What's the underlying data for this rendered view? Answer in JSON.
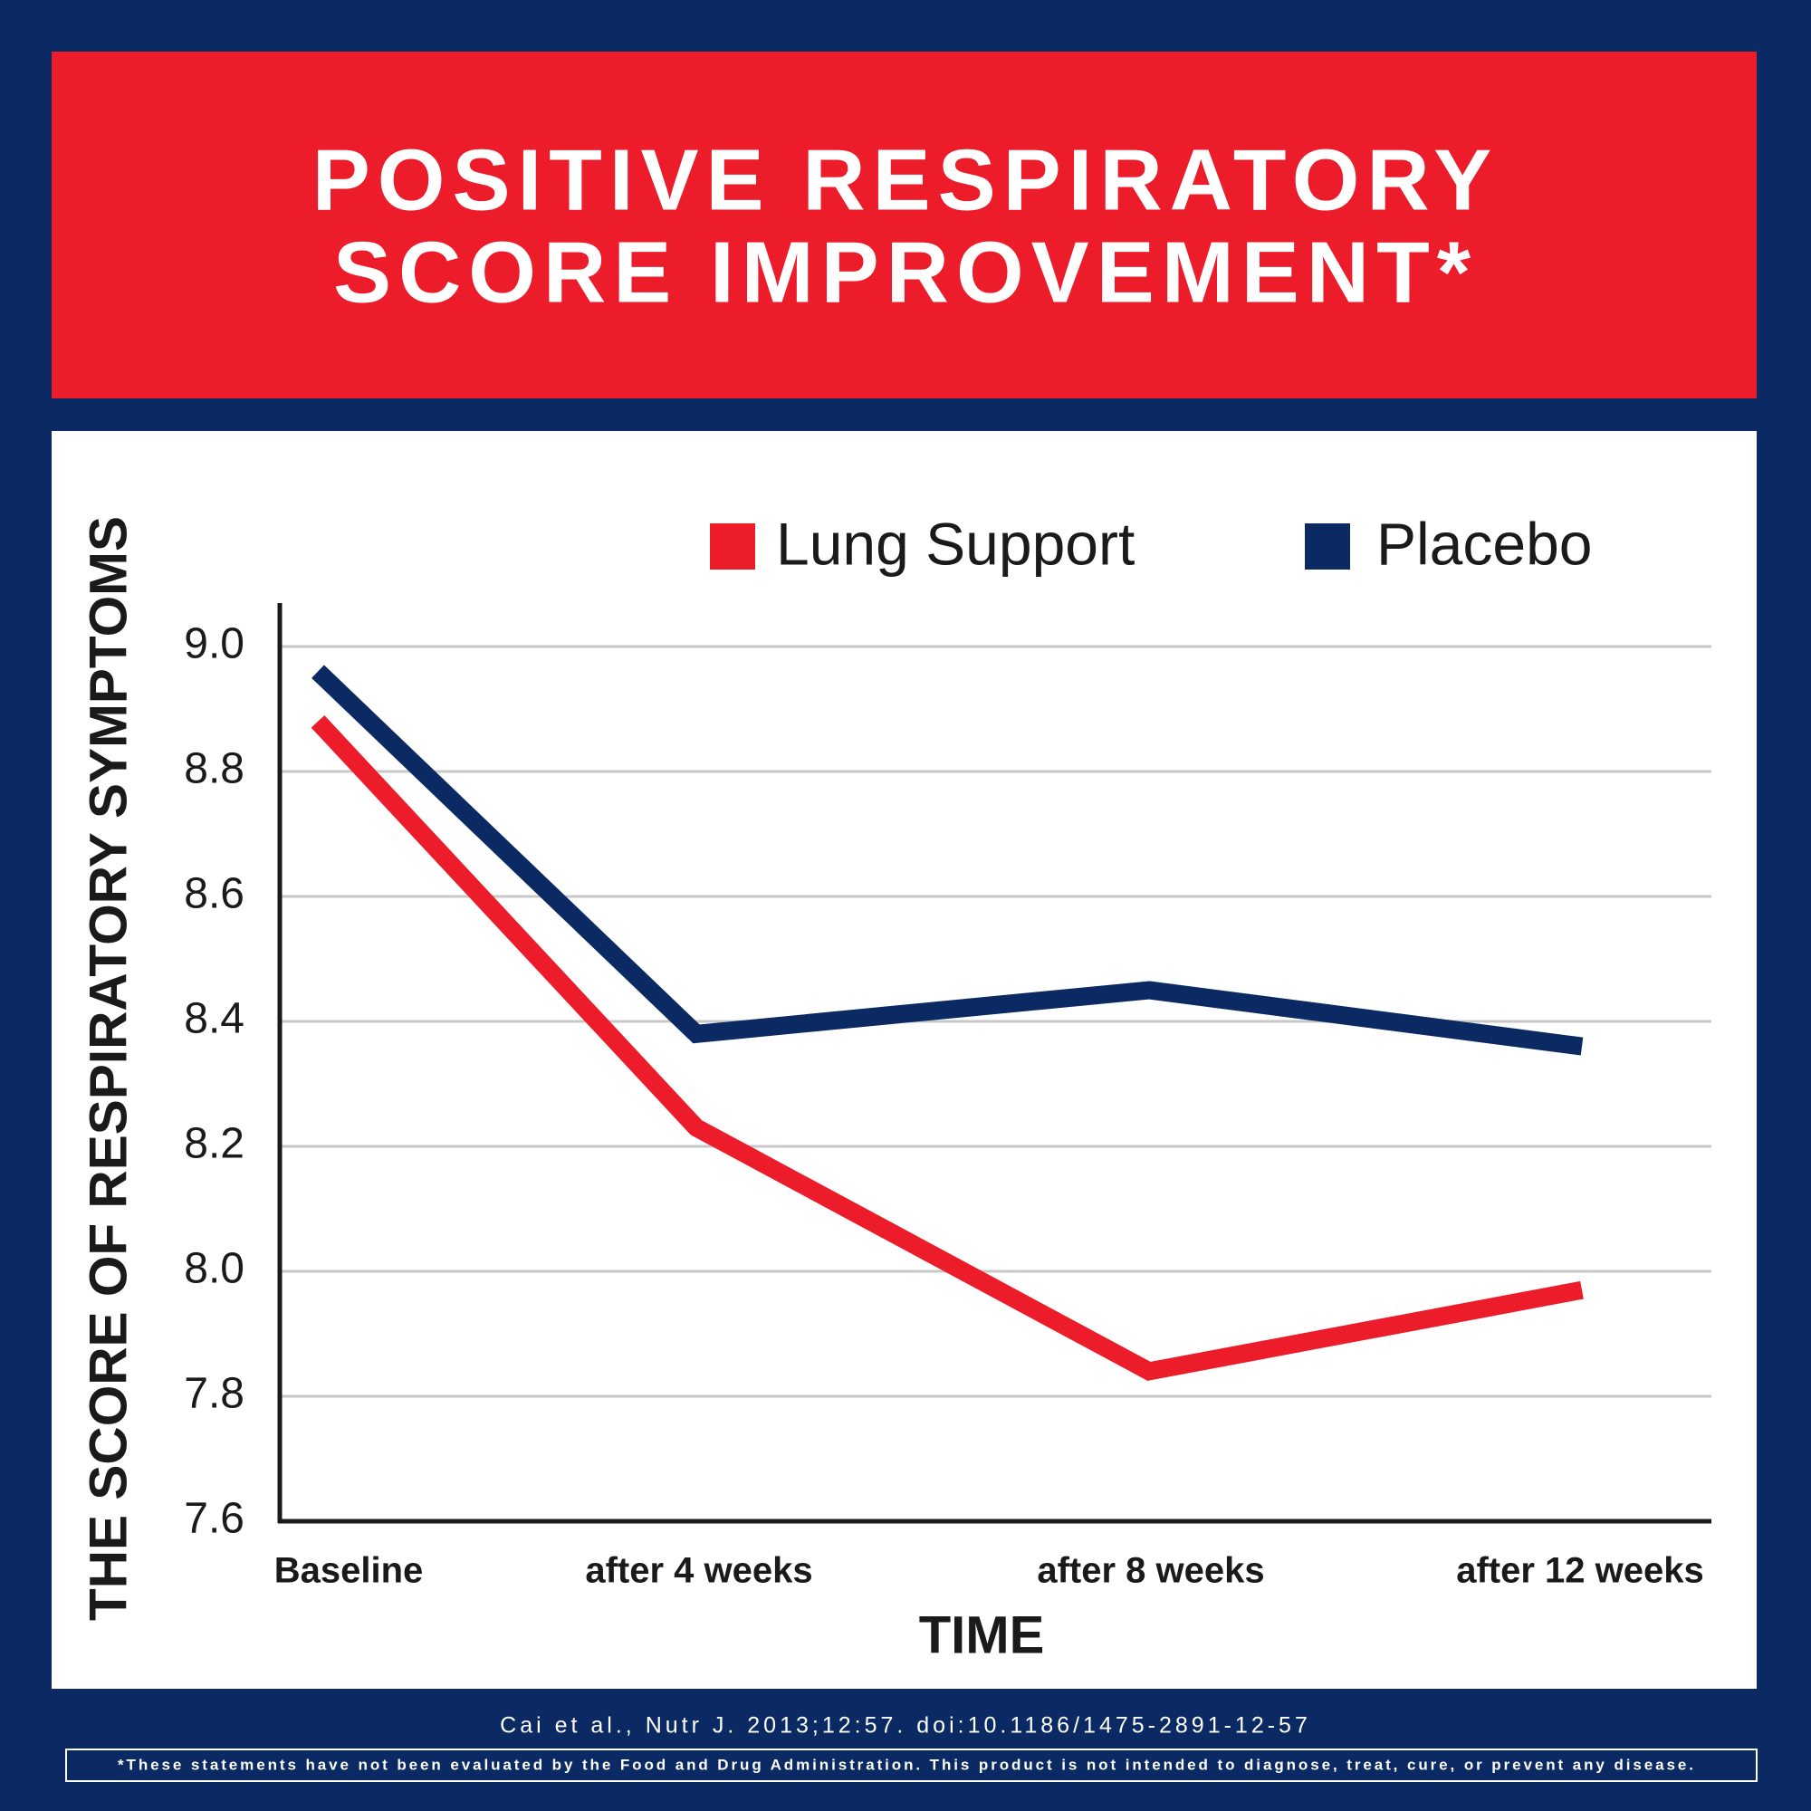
{
  "chart_data": {
    "type": "line",
    "title_lines": [
      "POSITIVE RESPIRATORY",
      "SCORE IMPROVEMENT*"
    ],
    "y_label": "THE SCORE OF RESPIRATORY SYMPTOMS",
    "x_label": "TIME",
    "categories": [
      "Baseline",
      "after 4 weeks",
      "after 8 weeks",
      "after 12 weeks"
    ],
    "series": [
      {
        "name": "Lung Support",
        "color": "#ec1c2a",
        "values": [
          8.88,
          8.23,
          7.84,
          7.97
        ]
      },
      {
        "name": "Placebo",
        "color": "#0b2a63",
        "values": [
          8.96,
          8.38,
          8.45,
          8.36
        ]
      }
    ],
    "ylim": [
      7.6,
      9.0
    ],
    "yticks": [
      {
        "value": 9.0,
        "label": "9.0"
      },
      8.8,
      8.6,
      8.4,
      8.2,
      {
        "value": 8.0,
        "label": "8.0"
      },
      7.8,
      7.6
    ],
    "grid": true,
    "citation": "Cai et al., Nutr J. 2013;12:57. doi:10.1186/1475-2891-12-57",
    "disclaimer": "*These statements have not been evaluated by the Food and Drug Administration.  This product is not intended to diagnose, treat, cure, or prevent any disease."
  }
}
